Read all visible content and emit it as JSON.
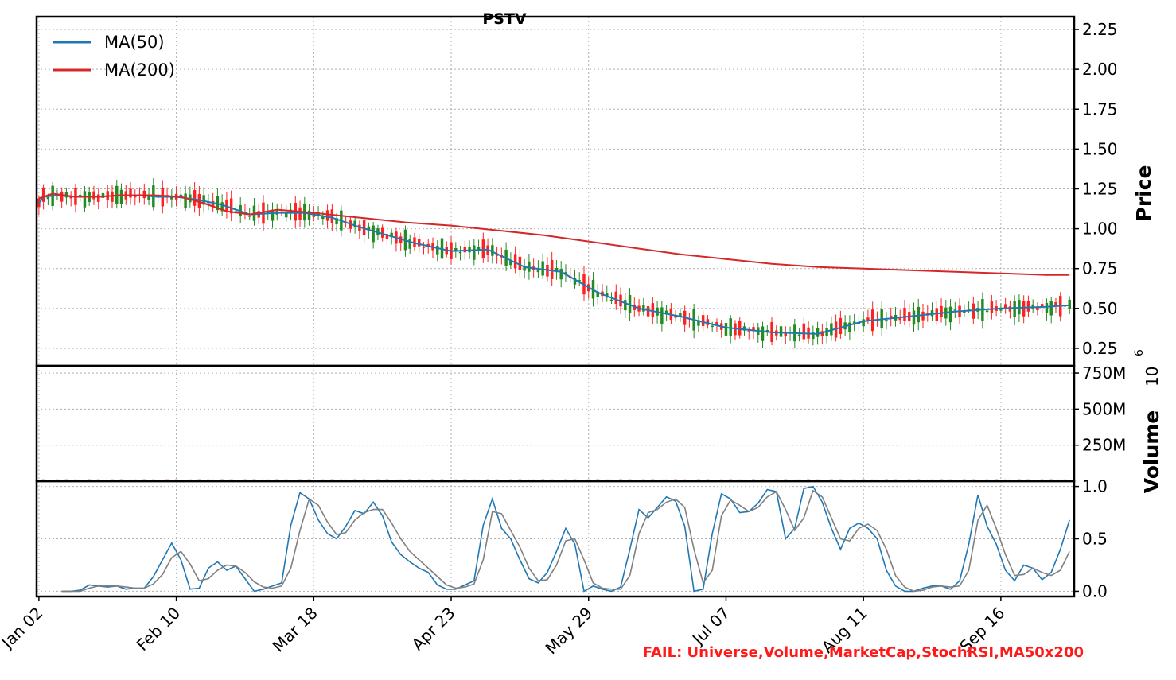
{
  "chart_data": [
    {
      "type": "candlestick",
      "title": "PSTV",
      "ylabel": "Price",
      "ylim": [
        0.14,
        2.33
      ],
      "yticks": [
        "0.25",
        "0.50",
        "0.75",
        "1.00",
        "1.25",
        "1.50",
        "1.75",
        "2.00",
        "2.25"
      ],
      "ytick_values": [
        0.25,
        0.5,
        0.75,
        1.0,
        1.25,
        1.5,
        1.75,
        2.0,
        2.25
      ],
      "grid": true,
      "legend_position": "top-left",
      "series": [
        {
          "name": "MA(50)",
          "color": "#1f77b4",
          "style": "line",
          "x": [
            0,
            1,
            4,
            8,
            13,
            18,
            22,
            26,
            30,
            35,
            40,
            46,
            52,
            58,
            64,
            70,
            76,
            82,
            90,
            98,
            106,
            114,
            122,
            131,
            140,
            150,
            160,
            170,
            180,
            190,
            200,
            210,
            220,
            225
          ],
          "values": [
            1.16,
            1.2,
            1.21,
            1.2,
            1.2,
            1.21,
            1.21,
            1.2,
            1.2,
            1.18,
            1.15,
            1.09,
            1.1,
            1.1,
            1.07,
            1.01,
            0.96,
            0.91,
            0.86,
            0.87,
            0.76,
            0.73,
            0.6,
            0.5,
            0.45,
            0.38,
            0.35,
            0.34,
            0.42,
            0.45,
            0.48,
            0.5,
            0.51,
            0.52
          ]
        },
        {
          "name": "MA(200)",
          "color": "#d62728",
          "style": "line",
          "x": [
            0,
            3,
            8,
            13,
            18,
            25,
            31,
            36,
            41,
            46,
            52,
            60,
            70,
            80,
            90,
            100,
            110,
            120,
            130,
            140,
            150,
            160,
            170,
            180,
            190,
            200,
            210,
            220,
            225
          ],
          "values": [
            1.19,
            1.22,
            1.2,
            1.2,
            1.21,
            1.21,
            1.2,
            1.16,
            1.11,
            1.09,
            1.12,
            1.1,
            1.07,
            1.04,
            1.02,
            0.99,
            0.96,
            0.92,
            0.88,
            0.84,
            0.81,
            0.78,
            0.76,
            0.75,
            0.74,
            0.73,
            0.72,
            0.71,
            0.71
          ]
        }
      ]
    },
    {
      "type": "bar",
      "ylabel": "Volume",
      "ylim": [
        0,
        800
      ],
      "yticks": [
        "250M",
        "500M",
        "750M"
      ],
      "ytick_values": [
        250,
        500,
        750
      ],
      "y_exponent": "10",
      "y_exponent_power": "6",
      "grid": true
    },
    {
      "type": "line",
      "ylim": [
        -0.05,
        1.05
      ],
      "yticks": [
        "0.0",
        "0.5",
        "1.0"
      ],
      "ytick_values": [
        0,
        0.5,
        1
      ],
      "grid": true,
      "series": [
        {
          "color": "#1f77b4",
          "x": [
            5,
            7,
            9,
            11,
            13,
            15,
            17,
            19,
            21,
            23,
            25,
            27,
            29,
            31,
            33,
            35,
            37,
            39,
            41,
            43,
            45,
            47,
            49,
            51,
            53,
            55,
            57,
            59,
            61,
            63,
            65,
            67,
            69,
            71,
            73,
            75,
            77,
            79,
            81,
            83,
            85,
            87,
            89,
            91,
            93,
            95,
            97,
            99,
            101,
            103,
            105,
            107,
            109,
            111,
            113,
            115,
            117,
            119,
            121,
            123,
            125,
            127,
            129,
            131,
            133,
            135,
            137,
            139,
            141,
            143,
            145,
            147,
            149,
            151,
            153,
            155,
            157,
            159,
            161,
            163,
            165,
            167,
            169,
            171,
            173,
            175,
            177,
            179,
            181,
            183,
            185,
            187,
            189,
            191,
            193,
            195,
            197,
            199,
            201,
            203,
            205,
            207,
            209,
            211,
            213,
            215,
            217,
            219,
            221,
            223,
            225
          ],
          "values": [
            0.0,
            0.0,
            0.01,
            0.06,
            0.05,
            0.04,
            0.05,
            0.02,
            0.03,
            0.03,
            0.14,
            0.3,
            0.46,
            0.3,
            0.02,
            0.03,
            0.22,
            0.28,
            0.2,
            0.24,
            0.12,
            0.0,
            0.02,
            0.05,
            0.08,
            0.63,
            0.94,
            0.88,
            0.68,
            0.55,
            0.5,
            0.62,
            0.77,
            0.74,
            0.85,
            0.72,
            0.47,
            0.35,
            0.28,
            0.22,
            0.18,
            0.06,
            0.02,
            0.02,
            0.06,
            0.1,
            0.63,
            0.88,
            0.6,
            0.5,
            0.3,
            0.12,
            0.08,
            0.18,
            0.38,
            0.6,
            0.45,
            0.0,
            0.05,
            0.02,
            0.0,
            0.04,
            0.4,
            0.78,
            0.7,
            0.8,
            0.9,
            0.86,
            0.62,
            0.0,
            0.02,
            0.55,
            0.93,
            0.88,
            0.75,
            0.76,
            0.84,
            0.97,
            0.95,
            0.5,
            0.6,
            0.98,
            1.0,
            0.85,
            0.6,
            0.4,
            0.6,
            0.65,
            0.6,
            0.5,
            0.2,
            0.05,
            0.0,
            0.0,
            0.03,
            0.05,
            0.05,
            0.02,
            0.1,
            0.45,
            0.92,
            0.62,
            0.45,
            0.2,
            0.1,
            0.25,
            0.22,
            0.11,
            0.18,
            0.4,
            0.68
          ]
        },
        {
          "color": "#808080",
          "x": [
            5,
            7,
            9,
            11,
            13,
            15,
            17,
            19,
            21,
            23,
            25,
            27,
            29,
            31,
            33,
            35,
            37,
            39,
            41,
            43,
            45,
            47,
            49,
            51,
            53,
            55,
            57,
            59,
            61,
            63,
            65,
            67,
            69,
            71,
            73,
            75,
            77,
            79,
            81,
            83,
            85,
            87,
            89,
            91,
            93,
            95,
            97,
            99,
            101,
            103,
            105,
            107,
            109,
            111,
            113,
            115,
            117,
            119,
            121,
            123,
            125,
            127,
            129,
            131,
            133,
            135,
            137,
            139,
            141,
            143,
            145,
            147,
            149,
            151,
            153,
            155,
            157,
            159,
            161,
            163,
            165,
            167,
            169,
            171,
            173,
            175,
            177,
            179,
            181,
            183,
            185,
            187,
            189,
            191,
            193,
            195,
            197,
            199,
            201,
            203,
            205,
            207,
            209,
            211,
            213,
            215,
            217,
            219,
            221,
            223,
            225
          ],
          "values": [
            0.0,
            0.0,
            0.0,
            0.03,
            0.05,
            0.05,
            0.05,
            0.04,
            0.03,
            0.03,
            0.07,
            0.16,
            0.32,
            0.38,
            0.26,
            0.1,
            0.12,
            0.2,
            0.25,
            0.24,
            0.18,
            0.09,
            0.04,
            0.03,
            0.05,
            0.22,
            0.58,
            0.88,
            0.82,
            0.66,
            0.54,
            0.56,
            0.68,
            0.75,
            0.78,
            0.78,
            0.65,
            0.5,
            0.38,
            0.3,
            0.22,
            0.14,
            0.06,
            0.03,
            0.04,
            0.07,
            0.3,
            0.76,
            0.74,
            0.58,
            0.42,
            0.22,
            0.1,
            0.11,
            0.25,
            0.48,
            0.5,
            0.3,
            0.08,
            0.03,
            0.02,
            0.02,
            0.15,
            0.55,
            0.75,
            0.78,
            0.85,
            0.88,
            0.8,
            0.4,
            0.08,
            0.2,
            0.72,
            0.87,
            0.82,
            0.76,
            0.8,
            0.9,
            0.95,
            0.78,
            0.58,
            0.7,
            0.96,
            0.9,
            0.7,
            0.5,
            0.48,
            0.6,
            0.64,
            0.58,
            0.4,
            0.15,
            0.04,
            0.0,
            0.01,
            0.04,
            0.05,
            0.04,
            0.05,
            0.2,
            0.68,
            0.82,
            0.6,
            0.35,
            0.15,
            0.16,
            0.22,
            0.18,
            0.15,
            0.2,
            0.38
          ]
        }
      ]
    }
  ],
  "x_axis": {
    "tick_labels": [
      "Jan 02",
      "Feb 10",
      "Mar 18",
      "Apr 23",
      "May 29",
      "Jul 07",
      "Aug 11",
      "Sep 16"
    ],
    "tick_positions": [
      0,
      30,
      60,
      90,
      120,
      150,
      180,
      210
    ],
    "xlim": [
      -0.5,
      226
    ]
  },
  "footer": {
    "fail_text": "FAIL: Universe,Volume,MarketCap,StochRSI,MA50x200"
  }
}
